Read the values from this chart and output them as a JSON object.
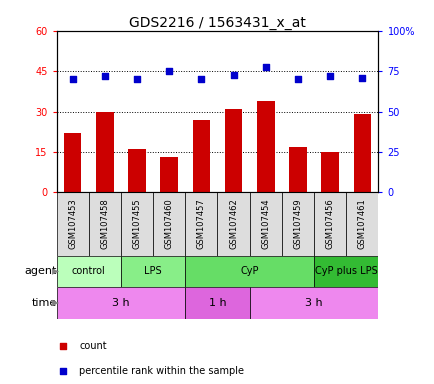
{
  "title": "GDS2216 / 1563431_x_at",
  "samples": [
    "GSM107453",
    "GSM107458",
    "GSM107455",
    "GSM107460",
    "GSM107457",
    "GSM107462",
    "GSM107454",
    "GSM107459",
    "GSM107456",
    "GSM107461"
  ],
  "counts": [
    22,
    30,
    16,
    13,
    27,
    31,
    34,
    17,
    15,
    29
  ],
  "percentiles": [
    70,
    72,
    70,
    75,
    70,
    73,
    78,
    70,
    72,
    71
  ],
  "ylim_left": [
    0,
    60
  ],
  "ylim_right": [
    0,
    100
  ],
  "yticks_left": [
    0,
    15,
    30,
    45,
    60
  ],
  "yticks_right": [
    0,
    25,
    50,
    75,
    100
  ],
  "ytick_right_labels": [
    "0",
    "25",
    "50",
    "75",
    "100%"
  ],
  "bar_color": "#cc0000",
  "dot_color": "#0000cc",
  "agent_groups": [
    {
      "label": "control",
      "start": 0,
      "end": 2,
      "color": "#bbffbb"
    },
    {
      "label": "LPS",
      "start": 2,
      "end": 4,
      "color": "#88ee88"
    },
    {
      "label": "CyP",
      "start": 4,
      "end": 8,
      "color": "#66dd66"
    },
    {
      "label": "CyP plus LPS",
      "start": 8,
      "end": 10,
      "color": "#33bb33"
    }
  ],
  "time_groups": [
    {
      "label": "3 h",
      "start": 0,
      "end": 4,
      "color": "#ee88ee"
    },
    {
      "label": "1 h",
      "start": 4,
      "end": 6,
      "color": "#dd66dd"
    },
    {
      "label": "3 h",
      "start": 6,
      "end": 10,
      "color": "#ee88ee"
    }
  ],
  "sample_box_color": "#dddddd",
  "legend_items": [
    {
      "label": "count",
      "color": "#cc0000"
    },
    {
      "label": "percentile rank within the sample",
      "color": "#0000cc"
    }
  ],
  "title_fontsize": 10,
  "tick_fontsize": 7,
  "sample_fontsize": 6,
  "row_label_fontsize": 8,
  "legend_fontsize": 7,
  "agent_fontsize": 7,
  "time_fontsize": 8
}
